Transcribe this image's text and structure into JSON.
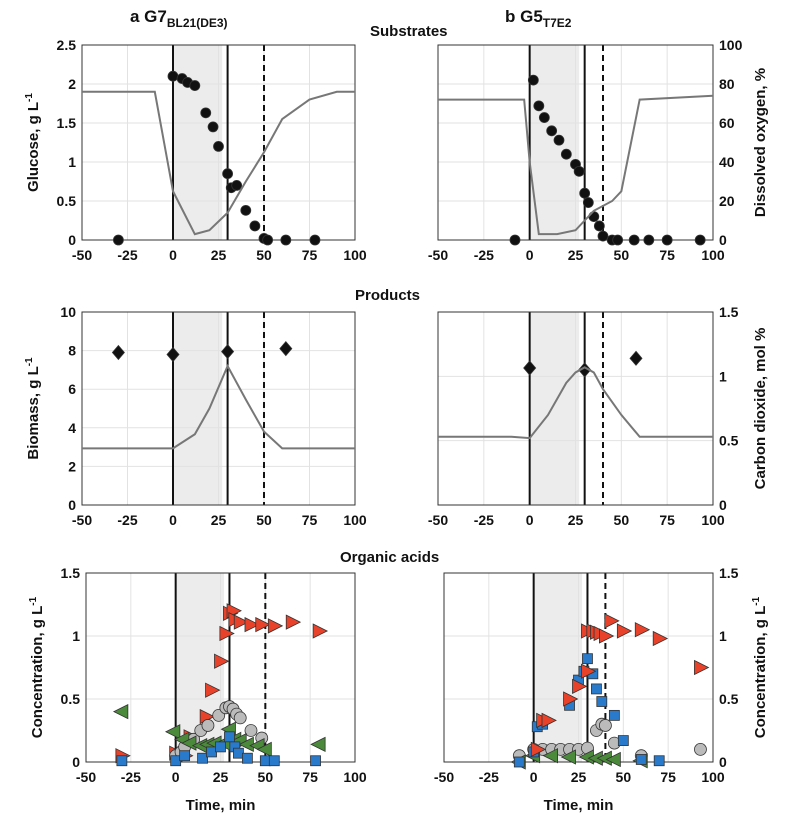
{
  "headings": {
    "a_prefix": "a G7",
    "a_sub": "BL21(DE3)",
    "b_prefix": "b G5",
    "b_sub": "T7E2",
    "substrates": "Substrates",
    "products": "Products",
    "acids": "Organic acids"
  },
  "chart_data": [
    {
      "id": "a_sub",
      "type": "scatter+line",
      "ylabel": "Glucose, g L",
      "ylabel_sup": "-1",
      "ylim": [
        0,
        2.5
      ],
      "yticks": [
        "0",
        "0.5",
        "1",
        "1.5",
        "2",
        "2.5"
      ],
      "y2lim": [
        0,
        100
      ],
      "xlim": [
        -50,
        100
      ],
      "xticks": [
        "-50",
        "-25",
        "0",
        "25",
        "50",
        "75",
        "100"
      ],
      "shade": [
        0,
        27
      ],
      "vlines": [
        0,
        30
      ],
      "dashed": 50,
      "series": [
        {
          "name": "Glucose",
          "marker": "circle",
          "color": "#111",
          "x": [
            -30,
            0,
            5,
            8,
            12,
            18,
            22,
            25,
            30,
            32,
            35,
            40,
            45,
            50,
            52,
            62,
            78
          ],
          "y": [
            0,
            2.1,
            2.07,
            2.02,
            1.98,
            1.63,
            1.45,
            1.2,
            0.85,
            0.67,
            0.7,
            0.38,
            0.18,
            0.02,
            0,
            0,
            0
          ]
        },
        {
          "name": "Dissolved oxygen",
          "axis": "right",
          "line": true,
          "color": "#777",
          "x": [
            -50,
            -10,
            0,
            12,
            20,
            30,
            40,
            50,
            60,
            75,
            90,
            100
          ],
          "y": [
            76,
            76,
            25,
            3,
            5,
            14,
            30,
            45,
            62,
            72,
            76,
            76
          ]
        }
      ]
    },
    {
      "id": "b_sub",
      "type": "scatter+line",
      "y2label": "Dissolved oxygen, %",
      "ylim": [
        0,
        2.5
      ],
      "y2lim": [
        0,
        100
      ],
      "y2ticks": [
        "0",
        "20",
        "40",
        "60",
        "80",
        "100"
      ],
      "xlim": [
        -50,
        100
      ],
      "xticks": [
        "-50",
        "-25",
        "0",
        "25",
        "50",
        "75",
        "100"
      ],
      "shade": [
        0,
        27
      ],
      "vlines": [
        0,
        30
      ],
      "dashed": 40,
      "series": [
        {
          "name": "Glucose",
          "marker": "circle",
          "color": "#111",
          "x": [
            -8,
            2,
            5,
            8,
            12,
            16,
            20,
            25,
            27,
            30,
            32,
            35,
            38,
            40,
            45,
            48,
            57,
            65,
            75,
            93
          ],
          "y": [
            0,
            2.05,
            1.72,
            1.57,
            1.4,
            1.28,
            1.1,
            0.97,
            0.88,
            0.6,
            0.48,
            0.3,
            0.18,
            0.05,
            0,
            0,
            0,
            0,
            0,
            0
          ]
        },
        {
          "name": "Dissolved oxygen",
          "axis": "right",
          "line": true,
          "color": "#777",
          "x": [
            -50,
            -3,
            0,
            5,
            15,
            25,
            30,
            35,
            45,
            50,
            60,
            100
          ],
          "y": [
            72,
            72,
            40,
            3,
            3,
            5,
            10,
            15,
            20,
            25,
            72,
            74
          ]
        }
      ]
    },
    {
      "id": "a_prod",
      "type": "scatter+line",
      "ylabel": "Biomass, g L",
      "ylabel_sup": "-1",
      "ylim": [
        0,
        10
      ],
      "yticks": [
        "0",
        "2",
        "4",
        "6",
        "8",
        "10"
      ],
      "y2lim": [
        0,
        1.5
      ],
      "xlim": [
        -50,
        100
      ],
      "xticks": [
        "-50",
        "-25",
        "0",
        "25",
        "50",
        "75",
        "100"
      ],
      "shade": [
        0,
        27
      ],
      "vlines": [
        0,
        30
      ],
      "dashed": 50,
      "series": [
        {
          "name": "Biomass",
          "marker": "diamond",
          "color": "#111",
          "x": [
            -30,
            0,
            30,
            62
          ],
          "y": [
            7.9,
            7.8,
            7.95,
            8.1
          ]
        },
        {
          "name": "Carbon dioxide",
          "axis": "right",
          "line": true,
          "color": "#777",
          "x": [
            -50,
            0,
            12,
            20,
            30,
            40,
            50,
            60,
            100
          ],
          "y": [
            0.44,
            0.44,
            0.55,
            0.75,
            1.08,
            0.82,
            0.57,
            0.44,
            0.44
          ]
        }
      ]
    },
    {
      "id": "b_prod",
      "type": "scatter+line",
      "y2label": "Carbon dioxide, mol %",
      "ylim": [
        0,
        10
      ],
      "y2lim": [
        0,
        1.5
      ],
      "y2ticks": [
        "0",
        "0.5",
        "1",
        "1.5"
      ],
      "xlim": [
        -50,
        100
      ],
      "xticks": [
        "-50",
        "-25",
        "0",
        "25",
        "50",
        "75",
        "100"
      ],
      "shade": [
        0,
        27
      ],
      "vlines": [
        0,
        30
      ],
      "dashed": 40,
      "series": [
        {
          "name": "Biomass",
          "marker": "diamond",
          "color": "#111",
          "x": [
            0,
            30,
            58
          ],
          "y": [
            7.1,
            7.0,
            7.6
          ]
        },
        {
          "name": "Carbon dioxide",
          "axis": "right",
          "line": true,
          "color": "#777",
          "x": [
            -50,
            -10,
            0,
            10,
            20,
            25,
            30,
            35,
            40,
            50,
            60,
            100
          ],
          "y": [
            0.53,
            0.53,
            0.52,
            0.7,
            0.95,
            1.03,
            1.07,
            1.03,
            0.9,
            0.7,
            0.53,
            0.53
          ]
        }
      ]
    },
    {
      "id": "a_acid",
      "type": "scatter",
      "ylabel": "Concentration, g L",
      "ylabel_sup": "-1",
      "xlabel": "Time, min",
      "ylim": [
        0,
        1.5
      ],
      "yticks": [
        "0",
        "0.5",
        "1",
        "1.5"
      ],
      "xlim": [
        -50,
        100
      ],
      "xticks": [
        "-50",
        "-25",
        "0",
        "25",
        "50",
        "75",
        "100"
      ],
      "shade": [
        0,
        27
      ],
      "vlines": [
        0,
        30
      ],
      "dashed": 50,
      "series": [
        {
          "name": "red",
          "marker": "tri-right",
          "color": "#e8432a",
          "x": [
            -30,
            0,
            5,
            8,
            17,
            20,
            25,
            28,
            30,
            32,
            33,
            36,
            42,
            48,
            55,
            65,
            80
          ],
          "y": [
            0.05,
            0.07,
            0.05,
            0.2,
            0.36,
            0.57,
            0.8,
            1.02,
            1.18,
            1.2,
            1.13,
            1.11,
            1.09,
            1.09,
            1.08,
            1.11,
            1.04
          ]
        },
        {
          "name": "grey",
          "marker": "circle",
          "color": "#bbb",
          "x": [
            0,
            3,
            5,
            10,
            14,
            18,
            24,
            28,
            30,
            32,
            34,
            36,
            42,
            48
          ],
          "y": [
            0.05,
            0.08,
            0.12,
            0.18,
            0.25,
            0.29,
            0.37,
            0.43,
            0.44,
            0.42,
            0.38,
            0.35,
            0.25,
            0.19
          ]
        },
        {
          "name": "green",
          "marker": "tri-left",
          "color": "#4a8a3a",
          "x": [
            -30,
            -1,
            4,
            8,
            14,
            18,
            22,
            27,
            30,
            33,
            36,
            40,
            46,
            50,
            80
          ],
          "y": [
            0.4,
            0.24,
            0.18,
            0.15,
            0.13,
            0.14,
            0.15,
            0.15,
            0.26,
            0.18,
            0.17,
            0.14,
            0.13,
            0.1,
            0.14
          ]
        },
        {
          "name": "blue",
          "marker": "square",
          "color": "#2a7acb",
          "x": [
            -30,
            0,
            5,
            15,
            20,
            25,
            30,
            33,
            35,
            40,
            50,
            55,
            78
          ],
          "y": [
            0.01,
            0.01,
            0.05,
            0.03,
            0.08,
            0.12,
            0.2,
            0.12,
            0.07,
            0.03,
            0.01,
            0.01,
            0.01
          ]
        }
      ]
    },
    {
      "id": "b_acid",
      "type": "scatter",
      "y2label": "Concentration, g L",
      "y2label_sup": "-1",
      "xlabel": "Time, min",
      "ylim": [
        0,
        1.5
      ],
      "y2lim": [
        0,
        1.5
      ],
      "y2ticks": [
        "0",
        "0.5",
        "1",
        "1.5"
      ],
      "xlim": [
        -50,
        100
      ],
      "xticks": [
        "-50",
        "-25",
        "0",
        "25",
        "50",
        "75",
        "100"
      ],
      "shade": [
        0,
        27
      ],
      "vlines": [
        0,
        30
      ],
      "dashed": 40,
      "series": [
        {
          "name": "grey",
          "marker": "circle",
          "color": "#bbb",
          "x": [
            -8,
            0,
            5,
            10,
            15,
            20,
            25,
            30,
            35,
            38,
            40,
            45,
            60,
            93
          ],
          "y": [
            0.05,
            0.1,
            0.1,
            0.1,
            0.1,
            0.1,
            0.1,
            0.11,
            0.25,
            0.3,
            0.29,
            0.15,
            0.05,
            0.1
          ]
        },
        {
          "name": "green",
          "marker": "tri-left",
          "color": "#4a8a3a",
          "x": [
            -8,
            0,
            10,
            20,
            30,
            35,
            40,
            45,
            60
          ],
          "y": [
            0,
            0.05,
            0.05,
            0.04,
            0.04,
            0.03,
            0.03,
            0.02,
            0.01
          ]
        },
        {
          "name": "blue",
          "marker": "square",
          "color": "#2a7acb",
          "x": [
            -8,
            0,
            2,
            5,
            20,
            25,
            28,
            30,
            33,
            35,
            38,
            45,
            50,
            60,
            70
          ],
          "y": [
            0,
            0.08,
            0.28,
            0.3,
            0.45,
            0.65,
            0.72,
            0.82,
            0.7,
            0.58,
            0.48,
            0.37,
            0.17,
            0.02,
            0.01
          ]
        },
        {
          "name": "red",
          "marker": "tri-right",
          "color": "#e8432a",
          "x": [
            2,
            5,
            8,
            20,
            25,
            30,
            30,
            33,
            35,
            37,
            40,
            43,
            50,
            60,
            70,
            93
          ],
          "y": [
            0.1,
            0.33,
            0.33,
            0.5,
            0.6,
            0.72,
            1.04,
            1.04,
            1.03,
            1.02,
            1.0,
            1.12,
            1.04,
            1.05,
            0.98,
            0.75
          ]
        }
      ]
    }
  ]
}
